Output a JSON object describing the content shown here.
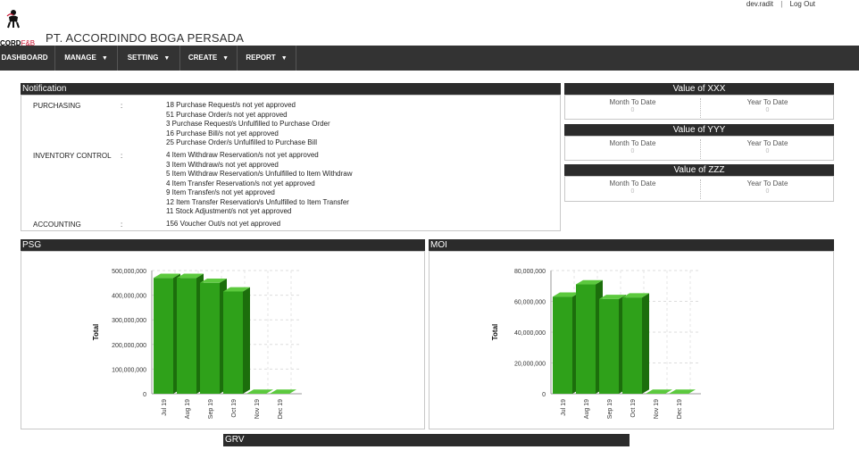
{
  "user": {
    "name": "dev.radit",
    "separator": "|",
    "logout": "Log Out"
  },
  "logo": {
    "brand_text": "CORD",
    "brand_accent": "F&B"
  },
  "company_name": "PT. ACCORDINDO BOGA PERSADA",
  "nav": {
    "items": [
      {
        "label": "DASHBOARD",
        "dropdown": false
      },
      {
        "label": "MANAGE",
        "dropdown": true
      },
      {
        "label": "SETTING",
        "dropdown": true
      },
      {
        "label": "CREATE",
        "dropdown": true
      },
      {
        "label": "REPORT",
        "dropdown": true
      }
    ]
  },
  "notification": {
    "title": "Notification",
    "groups": [
      {
        "category": "PURCHASING",
        "colon": ":",
        "items": [
          "18 Purchase Request/s not yet approved",
          "51 Purchase Order/s not yet approved",
          "3 Purchase Request/s Unfulfilled to Purchase Order",
          "16 Purchase Bill/s not yet approved",
          "25 Purchase Order/s Unfulfilled to Purchase Bill"
        ]
      },
      {
        "category": "INVENTORY CONTROL",
        "colon": ":",
        "items": [
          "4 Item Withdraw Reservation/s not yet approved",
          "3 Item Withdraw/s not yet approved",
          "5 Item Withdraw Reservation/s Unfulfilled to Item Withdraw",
          "4 Item Transfer Reservation/s not yet approved",
          "9 Item Transfer/s not yet approved",
          "12 Item Transfer Reservation/s Unfulfilled to Item Transfer",
          "11 Stock Adjustment/s not yet approved"
        ]
      },
      {
        "category": "ACCOUNTING",
        "colon": ":",
        "items": [
          "156 Voucher Out/s not yet approved"
        ]
      }
    ]
  },
  "values": [
    {
      "title": "Value of XXX",
      "mtd_label": "Month To Date",
      "ytd_label": "Year To Date",
      "mtd": "0",
      "ytd": "0"
    },
    {
      "title": "Value of YYY",
      "mtd_label": "Month To Date",
      "ytd_label": "Year To Date",
      "mtd": "0",
      "ytd": "0"
    },
    {
      "title": "Value of ZZZ",
      "mtd_label": "Month To Date",
      "ytd_label": "Year To Date",
      "mtd": "0",
      "ytd": "0"
    }
  ],
  "panels": {
    "psg_title": "PSG",
    "moi_title": "MOI",
    "grv_title": "GRV"
  },
  "colors": {
    "bar_front": "#2fa11a",
    "bar_side": "#1c6e0c",
    "bar_top": "#5cc93e",
    "header_bg": "#2b2b2b",
    "nav_bg": "#333333"
  },
  "chart_data": [
    {
      "type": "bar",
      "title": "PSG",
      "ylabel": "Total",
      "categories": [
        "Jul 19",
        "Aug 19",
        "Sep 19",
        "Oct 19",
        "Nov 19",
        "Dec 19"
      ],
      "values": [
        470000000,
        470000000,
        450000000,
        415000000,
        0,
        0
      ],
      "ylim": [
        0,
        500000000
      ],
      "yticks": [
        "500,000,000",
        "400,000,000",
        "300,000,000",
        "200,000,000",
        "100,000,000",
        "0"
      ],
      "ytick_values": [
        500000000,
        400000000,
        300000000,
        200000000,
        100000000,
        0
      ],
      "grid": true
    },
    {
      "type": "bar",
      "title": "MOI",
      "ylabel": "Total",
      "categories": [
        "Jul 19",
        "Aug 19",
        "Sep 19",
        "Oct 19",
        "Nov 19",
        "Dec 19"
      ],
      "values": [
        63000000,
        71000000,
        61500000,
        62500000,
        0,
        0
      ],
      "ylim": [
        0,
        80000000
      ],
      "yticks": [
        "80,000,000",
        "60,000,000",
        "40,000,000",
        "20,000,000",
        "0"
      ],
      "ytick_values": [
        80000000,
        60000000,
        40000000,
        20000000,
        0
      ],
      "grid": true
    }
  ]
}
